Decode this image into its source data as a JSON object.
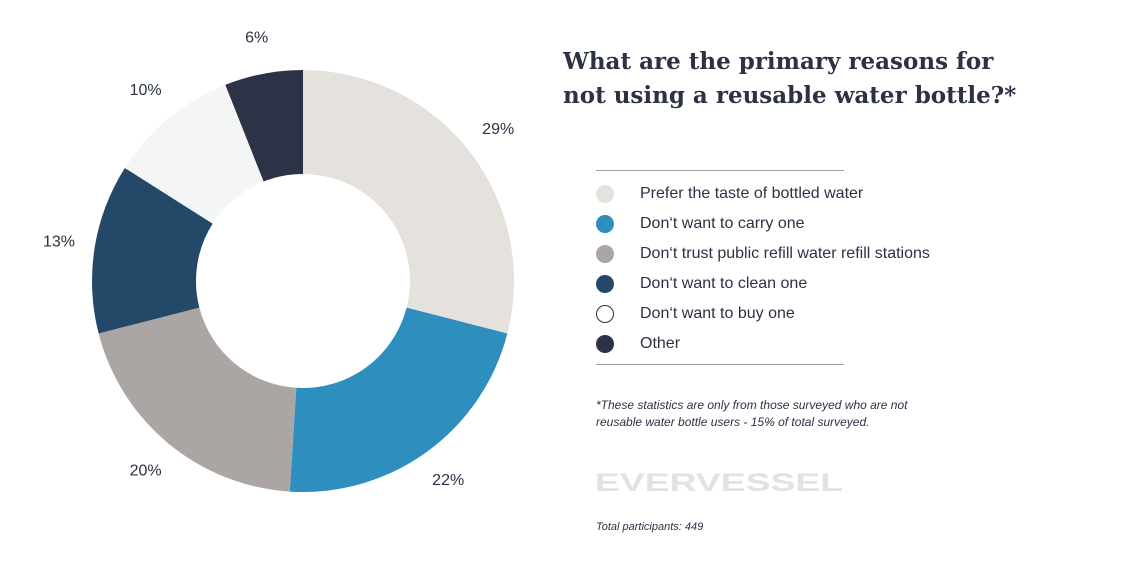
{
  "chart_data": {
    "type": "pie",
    "title": "What are the primary reasons for not using a reusable water bottle?*",
    "donut": true,
    "categories": [
      "Prefer the taste of bottled water",
      "Don't want to carry one",
      "Don't trust public refill water refill stations",
      "Don't want to clean one",
      "Don't want to buy one",
      "Other"
    ],
    "values": [
      29,
      22,
      20,
      13,
      10,
      6
    ],
    "value_labels": [
      "29%",
      "22%",
      "20%",
      "13%",
      "10%",
      "6%"
    ],
    "colors": [
      "#e5e1dc",
      "#2e8ebe",
      "#aba6a3",
      "#244868",
      "#f4f6f6",
      "#2c3347"
    ],
    "legend_position": "right"
  },
  "legend": [
    {
      "label": "Prefer the taste of bottled water",
      "color": "#e5e1dc"
    },
    {
      "label": "Don‘t want to carry one",
      "color": "#2e8ebe"
    },
    {
      "label": "Don‘t trust public refill water refill stations",
      "color": "#aba6a3"
    },
    {
      "label": "Don‘t want to clean one",
      "color": "#244868"
    },
    {
      "label": "Don‘t want to buy one",
      "color": "#ffffff",
      "outline": "#2c3347"
    },
    {
      "label": "Other",
      "color": "#2c3347"
    }
  ],
  "footnote": "*These statistics are only from those surveyed who are not reusable water bottle users - 15% of total surveyed.",
  "brand": "EVERVESSEL",
  "total": "Total participants: 449"
}
